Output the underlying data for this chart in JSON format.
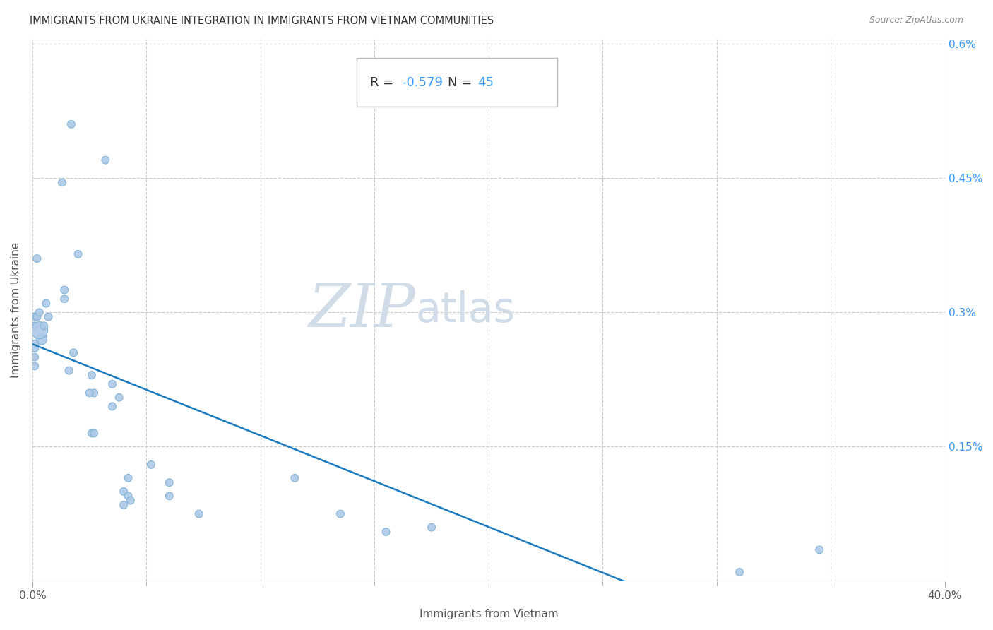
{
  "title": "IMMIGRANTS FROM UKRAINE INTEGRATION IN IMMIGRANTS FROM VIETNAM COMMUNITIES",
  "source": "Source: ZipAtlas.com",
  "xlabel": "Immigrants from Vietnam",
  "ylabel": "Immigrants from Ukraine",
  "R": -0.579,
  "N": 45,
  "xlim": [
    0.0,
    0.4
  ],
  "ylim": [
    0.0,
    0.6
  ],
  "xtick_positions": [
    0.0,
    0.4
  ],
  "xtick_labels": [
    "0.0%",
    "40.0%"
  ],
  "xtick_minor_positions": [
    0.05,
    0.1,
    0.15,
    0.2,
    0.25,
    0.3,
    0.35
  ],
  "ytick_labels": [
    "0.6%",
    "0.45%",
    "0.3%",
    "0.15%"
  ],
  "ytick_values": [
    0.6,
    0.45,
    0.3,
    0.15
  ],
  "scatter_color": "#adc9e8",
  "scatter_edge_color": "#7aafd4",
  "line_color": "#1a7abf",
  "watermark_zip": "ZIP",
  "watermark_atlas": "atlas",
  "watermark_color": "#d0dce8",
  "points_x": [
    0.004,
    0.017,
    0.032,
    0.013,
    0.002,
    0.001,
    0.001,
    0.002,
    0.003,
    0.001,
    0.001,
    0.001,
    0.001,
    0.006,
    0.003,
    0.005,
    0.007,
    0.014,
    0.014,
    0.02,
    0.018,
    0.016,
    0.026,
    0.027,
    0.027,
    0.025,
    0.026,
    0.035,
    0.035,
    0.038,
    0.04,
    0.042,
    0.042,
    0.04,
    0.043,
    0.052,
    0.06,
    0.06,
    0.073,
    0.115,
    0.135,
    0.155,
    0.175,
    0.31,
    0.345
  ],
  "points_y": [
    0.27,
    0.51,
    0.47,
    0.445,
    0.36,
    0.285,
    0.295,
    0.295,
    0.28,
    0.265,
    0.24,
    0.26,
    0.25,
    0.31,
    0.3,
    0.285,
    0.295,
    0.315,
    0.325,
    0.365,
    0.255,
    0.235,
    0.165,
    0.165,
    0.21,
    0.21,
    0.23,
    0.22,
    0.195,
    0.205,
    0.1,
    0.095,
    0.115,
    0.085,
    0.09,
    0.13,
    0.11,
    0.095,
    0.075,
    0.115,
    0.075,
    0.055,
    0.06,
    0.01,
    0.035
  ],
  "point_sizes": [
    120,
    60,
    60,
    60,
    60,
    60,
    60,
    60,
    300,
    60,
    60,
    60,
    60,
    60,
    60,
    60,
    60,
    60,
    60,
    60,
    60,
    60,
    60,
    60,
    60,
    60,
    60,
    60,
    60,
    60,
    60,
    60,
    60,
    60,
    60,
    60,
    60,
    60,
    60,
    60,
    60,
    60,
    60,
    60,
    60
  ]
}
